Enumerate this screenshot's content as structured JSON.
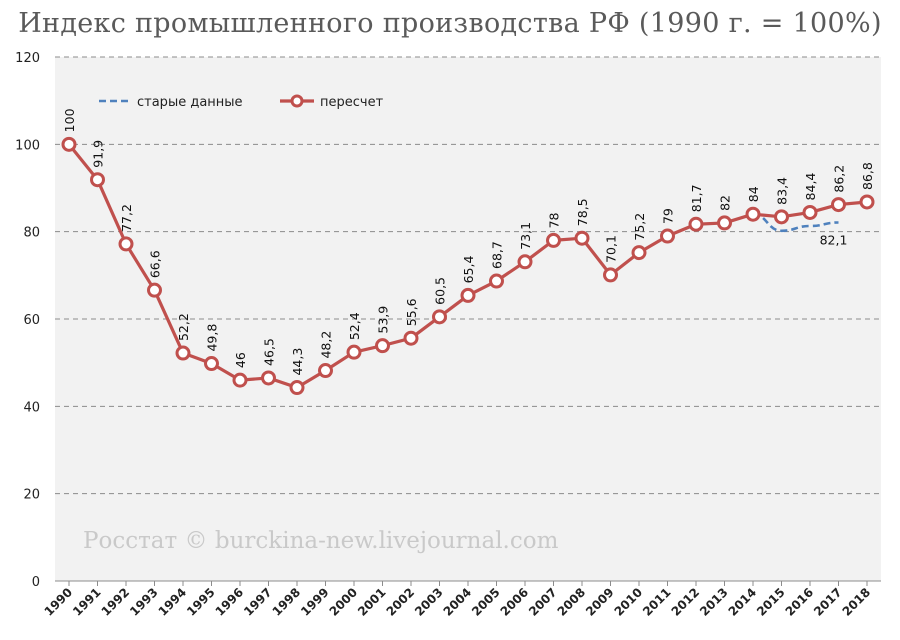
{
  "title": "Индекс промышленного производства РФ (1990 г. = 100%)",
  "watermark": "Росстат © burckina-new.livejournal.com",
  "chart_data": {
    "type": "line",
    "title": "Индекс промышленного производства РФ (1990 г. = 100%)",
    "xlabel": "",
    "ylabel": "",
    "ylim": [
      0,
      120
    ],
    "yticks": [
      0,
      20,
      40,
      60,
      80,
      100,
      120
    ],
    "grid": true,
    "legend_position": "top-left",
    "categories": [
      "1990",
      "1991",
      "1992",
      "1993",
      "1994",
      "1995",
      "1996",
      "1997",
      "1998",
      "1999",
      "2000",
      "2001",
      "2002",
      "2003",
      "2004",
      "2005",
      "2006",
      "2007",
      "2008",
      "2009",
      "2010",
      "2011",
      "2012",
      "2013",
      "2014",
      "2015",
      "2016",
      "2017",
      "2018"
    ],
    "series": [
      {
        "name": "пересчет",
        "color": "#c0504d",
        "style": "solid-markers",
        "values": [
          100,
          91.9,
          77.2,
          66.6,
          52.2,
          49.8,
          46,
          46.5,
          44.3,
          48.2,
          52.4,
          53.9,
          55.6,
          60.5,
          65.4,
          68.7,
          73.1,
          78,
          78.5,
          70.1,
          75.2,
          79,
          81.7,
          82,
          84,
          83.4,
          84.4,
          86.2,
          86.8
        ],
        "labels": [
          "100",
          "91,9",
          "77,2",
          "66,6",
          "52,2",
          "49,8",
          "46",
          "46,5",
          "44,3",
          "48,2",
          "52,4",
          "53,9",
          "55,6",
          "60,5",
          "65,4",
          "68,7",
          "73,1",
          "78",
          "78,5",
          "70,1",
          "75,2",
          "79",
          "81,7",
          "82",
          "84",
          "83,4",
          "84,4",
          "86,2",
          "86,8"
        ]
      },
      {
        "name": "старые данные",
        "color": "#4f81bd",
        "style": "dashed",
        "x": [
          "2014",
          "2015",
          "2016",
          "2017"
        ],
        "values": [
          84,
          80.2,
          81.3,
          82.1
        ],
        "end_label": "82,1"
      }
    ]
  }
}
